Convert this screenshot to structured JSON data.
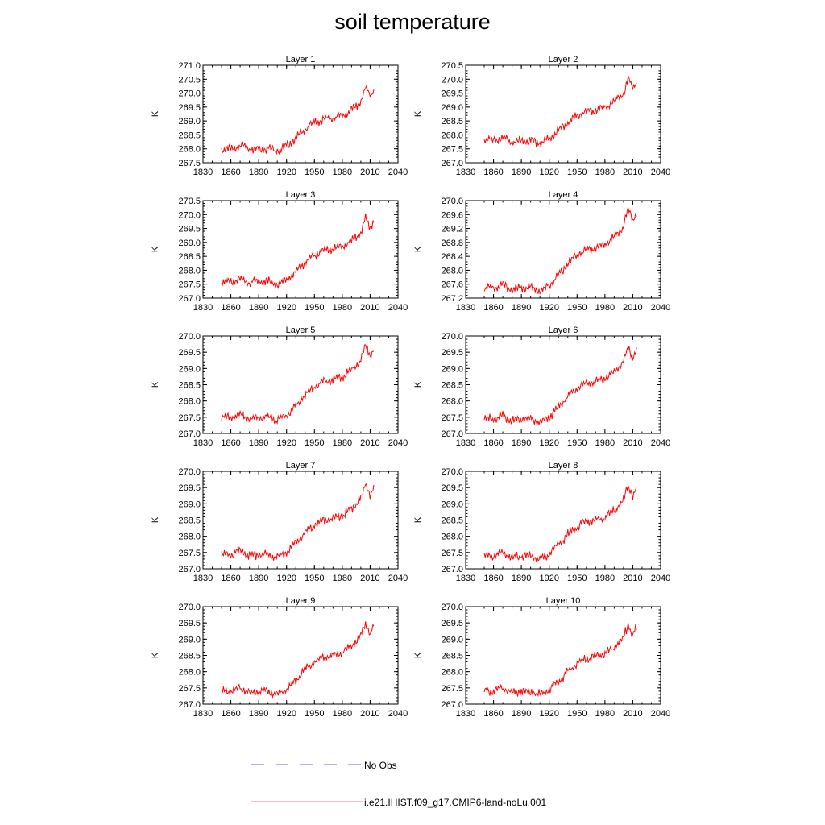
{
  "figure": {
    "title": "soil temperature",
    "colors": {
      "model_line": "#ff0000",
      "obs_line": "#5a6fd6",
      "axis": "#000000"
    }
  },
  "legend": {
    "entries": [
      {
        "label": "No Obs",
        "style": "dashed",
        "color": "#5a6fd6"
      },
      {
        "label": "i.e21.IHIST.f09_g17.CMIP6-land-noLu.001",
        "style": "solid",
        "color": "#ff8080"
      }
    ]
  },
  "chart_data": [
    {
      "type": "line",
      "title": "Layer 1",
      "xlabel": "",
      "ylabel": "K",
      "xlim": [
        1830,
        2040
      ],
      "ylim": [
        267.5,
        271.0
      ],
      "xticks": [
        "1830",
        "1860",
        "1890",
        "1920",
        "1950",
        "1980",
        "2010",
        "2040"
      ],
      "yticks": [
        "267.5",
        "268.0",
        "268.5",
        "269.0",
        "269.5",
        "270.0",
        "270.5",
        "271.0"
      ],
      "series": [
        {
          "x": [
            1850,
            1860,
            1870,
            1880,
            1890,
            1900,
            1910,
            1920,
            1930,
            1940,
            1950,
            1960,
            1970,
            1980,
            1990,
            2000,
            2005,
            2010,
            2014
          ],
          "values": [
            268.0,
            268.0,
            268.1,
            268.0,
            268.0,
            268.0,
            267.95,
            268.1,
            268.4,
            268.7,
            268.95,
            269.05,
            269.1,
            269.2,
            269.4,
            269.7,
            270.2,
            269.9,
            270.1
          ]
        }
      ]
    },
    {
      "type": "line",
      "title": "Layer 2",
      "xlabel": "",
      "ylabel": "K",
      "xlim": [
        1830,
        2040
      ],
      "ylim": [
        267.0,
        270.5
      ],
      "xticks": [
        "1830",
        "1860",
        "1890",
        "1920",
        "1950",
        "1980",
        "2010",
        "2040"
      ],
      "yticks": [
        "267.0",
        "267.5",
        "268.0",
        "268.5",
        "269.0",
        "269.5",
        "270.0",
        "270.5"
      ],
      "series": [
        {
          "x": [
            1850,
            1860,
            1870,
            1880,
            1890,
            1900,
            1910,
            1920,
            1930,
            1940,
            1950,
            1960,
            1970,
            1980,
            1990,
            2000,
            2005,
            2010,
            2014
          ],
          "values": [
            267.8,
            267.8,
            267.9,
            267.75,
            267.8,
            267.8,
            267.7,
            267.85,
            268.15,
            268.45,
            268.7,
            268.85,
            268.9,
            269.0,
            269.2,
            269.5,
            270.0,
            269.7,
            269.9
          ]
        }
      ]
    },
    {
      "type": "line",
      "title": "Layer 3",
      "xlabel": "",
      "ylabel": "K",
      "xlim": [
        1830,
        2040
      ],
      "ylim": [
        267.0,
        270.5
      ],
      "xticks": [
        "1830",
        "1860",
        "1890",
        "1920",
        "1950",
        "1980",
        "2010",
        "2040"
      ],
      "yticks": [
        "267.0",
        "267.5",
        "268.0",
        "268.5",
        "269.0",
        "269.5",
        "270.0",
        "270.5"
      ],
      "series": [
        {
          "x": [
            1850,
            1860,
            1870,
            1880,
            1890,
            1900,
            1910,
            1920,
            1930,
            1940,
            1950,
            1960,
            1970,
            1980,
            1990,
            2000,
            2005,
            2010,
            2014
          ],
          "values": [
            267.6,
            267.6,
            267.7,
            267.55,
            267.6,
            267.6,
            267.5,
            267.65,
            267.95,
            268.3,
            268.55,
            268.7,
            268.75,
            268.85,
            269.05,
            269.35,
            269.85,
            269.55,
            269.75
          ]
        }
      ]
    },
    {
      "type": "line",
      "title": "Layer 4",
      "xlabel": "",
      "ylabel": "K",
      "xlim": [
        1830,
        2040
      ],
      "ylim": [
        267.2,
        270.0
      ],
      "xticks": [
        "1830",
        "1860",
        "1890",
        "1920",
        "1950",
        "1980",
        "2010",
        "2040"
      ],
      "yticks": [
        "267.2",
        "267.6",
        "268.0",
        "268.4",
        "268.8",
        "269.2",
        "269.6",
        "270.0"
      ],
      "series": [
        {
          "x": [
            1850,
            1860,
            1870,
            1880,
            1890,
            1900,
            1910,
            1920,
            1930,
            1940,
            1950,
            1960,
            1970,
            1980,
            1990,
            2000,
            2005,
            2010,
            2014
          ],
          "values": [
            267.5,
            267.5,
            267.6,
            267.45,
            267.5,
            267.5,
            267.4,
            267.55,
            267.85,
            268.2,
            268.45,
            268.6,
            268.65,
            268.75,
            268.95,
            269.25,
            269.75,
            269.45,
            269.65
          ]
        }
      ]
    },
    {
      "type": "line",
      "title": "Layer 5",
      "xlabel": "",
      "ylabel": "K",
      "xlim": [
        1830,
        2040
      ],
      "ylim": [
        267.0,
        270.0
      ],
      "xticks": [
        "1830",
        "1860",
        "1890",
        "1920",
        "1950",
        "1980",
        "2010",
        "2040"
      ],
      "yticks": [
        "267.0",
        "267.5",
        "268.0",
        "268.5",
        "269.0",
        "269.5",
        "270.0"
      ],
      "series": [
        {
          "x": [
            1850,
            1860,
            1870,
            1880,
            1890,
            1900,
            1910,
            1920,
            1930,
            1940,
            1950,
            1960,
            1970,
            1980,
            1990,
            2000,
            2005,
            2010,
            2014
          ],
          "values": [
            267.5,
            267.5,
            267.6,
            267.45,
            267.5,
            267.5,
            267.4,
            267.55,
            267.85,
            268.2,
            268.45,
            268.6,
            268.65,
            268.75,
            268.95,
            269.25,
            269.7,
            269.4,
            269.6
          ]
        }
      ]
    },
    {
      "type": "line",
      "title": "Layer 6",
      "xlabel": "",
      "ylabel": "K",
      "xlim": [
        1830,
        2040
      ],
      "ylim": [
        267.0,
        270.0
      ],
      "xticks": [
        "1830",
        "1860",
        "1890",
        "1920",
        "1950",
        "1980",
        "2010",
        "2040"
      ],
      "yticks": [
        "267.0",
        "267.5",
        "268.0",
        "268.5",
        "269.0",
        "269.5",
        "270.0"
      ],
      "series": [
        {
          "x": [
            1850,
            1860,
            1870,
            1880,
            1890,
            1900,
            1910,
            1920,
            1930,
            1940,
            1950,
            1960,
            1970,
            1980,
            1990,
            2000,
            2005,
            2010,
            2014
          ],
          "values": [
            267.45,
            267.45,
            267.55,
            267.4,
            267.45,
            267.45,
            267.35,
            267.5,
            267.8,
            268.15,
            268.4,
            268.55,
            268.6,
            268.7,
            268.9,
            269.2,
            269.65,
            269.35,
            269.55
          ]
        }
      ]
    },
    {
      "type": "line",
      "title": "Layer 7",
      "xlabel": "",
      "ylabel": "K",
      "xlim": [
        1830,
        2040
      ],
      "ylim": [
        267.0,
        270.0
      ],
      "xticks": [
        "1830",
        "1860",
        "1890",
        "1920",
        "1950",
        "1980",
        "2010",
        "2040"
      ],
      "yticks": [
        "267.0",
        "267.5",
        "268.0",
        "268.5",
        "269.0",
        "269.5",
        "270.0"
      ],
      "series": [
        {
          "x": [
            1850,
            1860,
            1870,
            1880,
            1890,
            1900,
            1910,
            1920,
            1930,
            1940,
            1950,
            1960,
            1970,
            1980,
            1990,
            2000,
            2005,
            2010,
            2014
          ],
          "values": [
            267.45,
            267.45,
            267.55,
            267.4,
            267.45,
            267.45,
            267.35,
            267.5,
            267.8,
            268.1,
            268.35,
            268.5,
            268.55,
            268.65,
            268.85,
            269.15,
            269.6,
            269.3,
            269.5
          ]
        }
      ]
    },
    {
      "type": "line",
      "title": "Layer 8",
      "xlabel": "",
      "ylabel": "K",
      "xlim": [
        1830,
        2040
      ],
      "ylim": [
        267.0,
        270.0
      ],
      "xticks": [
        "1830",
        "1860",
        "1890",
        "1920",
        "1950",
        "1980",
        "2010",
        "2040"
      ],
      "yticks": [
        "267.0",
        "267.5",
        "268.0",
        "268.5",
        "269.0",
        "269.5",
        "270.0"
      ],
      "series": [
        {
          "x": [
            1850,
            1860,
            1870,
            1880,
            1890,
            1900,
            1910,
            1920,
            1930,
            1940,
            1950,
            1960,
            1970,
            1980,
            1990,
            2000,
            2005,
            2010,
            2014
          ],
          "values": [
            267.4,
            267.4,
            267.5,
            267.35,
            267.4,
            267.4,
            267.3,
            267.45,
            267.75,
            268.05,
            268.3,
            268.45,
            268.5,
            268.6,
            268.8,
            269.1,
            269.55,
            269.25,
            269.45
          ]
        }
      ]
    },
    {
      "type": "line",
      "title": "Layer 9",
      "xlabel": "",
      "ylabel": "K",
      "xlim": [
        1830,
        2040
      ],
      "ylim": [
        267.0,
        270.0
      ],
      "xticks": [
        "1830",
        "1860",
        "1890",
        "1920",
        "1950",
        "1980",
        "2010",
        "2040"
      ],
      "yticks": [
        "267.0",
        "267.5",
        "268.0",
        "268.5",
        "269.0",
        "269.5",
        "270.0"
      ],
      "series": [
        {
          "x": [
            1850,
            1860,
            1870,
            1880,
            1890,
            1900,
            1910,
            1920,
            1930,
            1940,
            1950,
            1960,
            1970,
            1980,
            1990,
            2000,
            2005,
            2010,
            2014
          ],
          "values": [
            267.4,
            267.4,
            267.5,
            267.35,
            267.4,
            267.4,
            267.3,
            267.45,
            267.75,
            268.05,
            268.3,
            268.45,
            268.5,
            268.6,
            268.8,
            269.1,
            269.5,
            269.2,
            269.4
          ]
        }
      ]
    },
    {
      "type": "line",
      "title": "Layer 10",
      "xlabel": "",
      "ylabel": "K",
      "xlim": [
        1830,
        2040
      ],
      "ylim": [
        267.0,
        270.0
      ],
      "xticks": [
        "1830",
        "1860",
        "1890",
        "1920",
        "1950",
        "1980",
        "2010",
        "2040"
      ],
      "yticks": [
        "267.0",
        "267.5",
        "268.0",
        "268.5",
        "269.0",
        "269.5",
        "270.0"
      ],
      "series": [
        {
          "x": [
            1850,
            1860,
            1870,
            1880,
            1890,
            1900,
            1910,
            1920,
            1930,
            1940,
            1950,
            1960,
            1970,
            1980,
            1990,
            2000,
            2005,
            2010,
            2014
          ],
          "values": [
            267.4,
            267.4,
            267.5,
            267.35,
            267.4,
            267.4,
            267.3,
            267.45,
            267.7,
            268.0,
            268.25,
            268.4,
            268.45,
            268.55,
            268.75,
            269.05,
            269.45,
            269.15,
            269.35
          ]
        }
      ]
    }
  ]
}
